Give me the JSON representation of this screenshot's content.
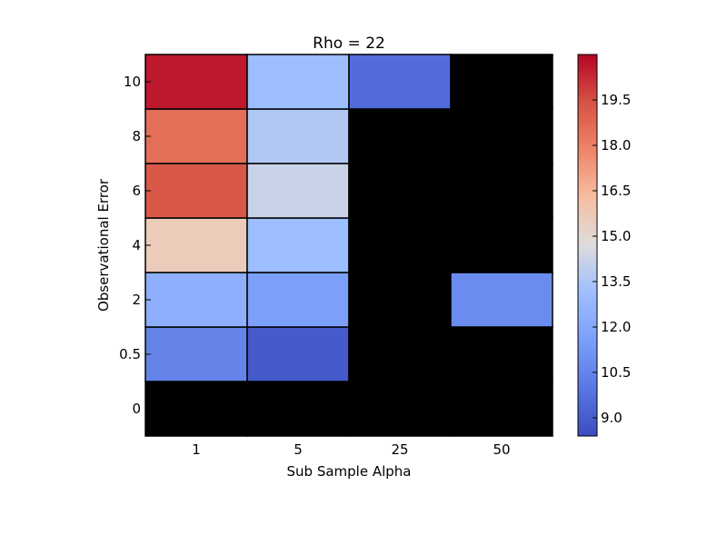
{
  "chart_data": {
    "type": "heatmap",
    "title": "Rho = 22",
    "xlabel": "Sub Sample Alpha",
    "ylabel": "Observational Error",
    "x_categories": [
      "1",
      "5",
      "25",
      "50"
    ],
    "y_categories": [
      "0",
      "0.5",
      "2",
      "4",
      "6",
      "8",
      "10"
    ],
    "values": [
      [
        null,
        null,
        null,
        null
      ],
      [
        10.5,
        8.9,
        null,
        null
      ],
      [
        12.4,
        11.6,
        null,
        10.8
      ],
      [
        15.6,
        13.1,
        null,
        null
      ],
      [
        19.2,
        14.2,
        null,
        null
      ],
      [
        18.5,
        13.6,
        null,
        null
      ],
      [
        20.6,
        13.1,
        9.6,
        null
      ]
    ],
    "missing_color": "#000000",
    "colormap": "coolwarm",
    "colorbar": {
      "range": [
        8.4,
        21.0
      ],
      "ticks": [
        "9.0",
        "10.5",
        "12.0",
        "13.5",
        "15.0",
        "16.5",
        "18.0",
        "19.5"
      ]
    }
  }
}
